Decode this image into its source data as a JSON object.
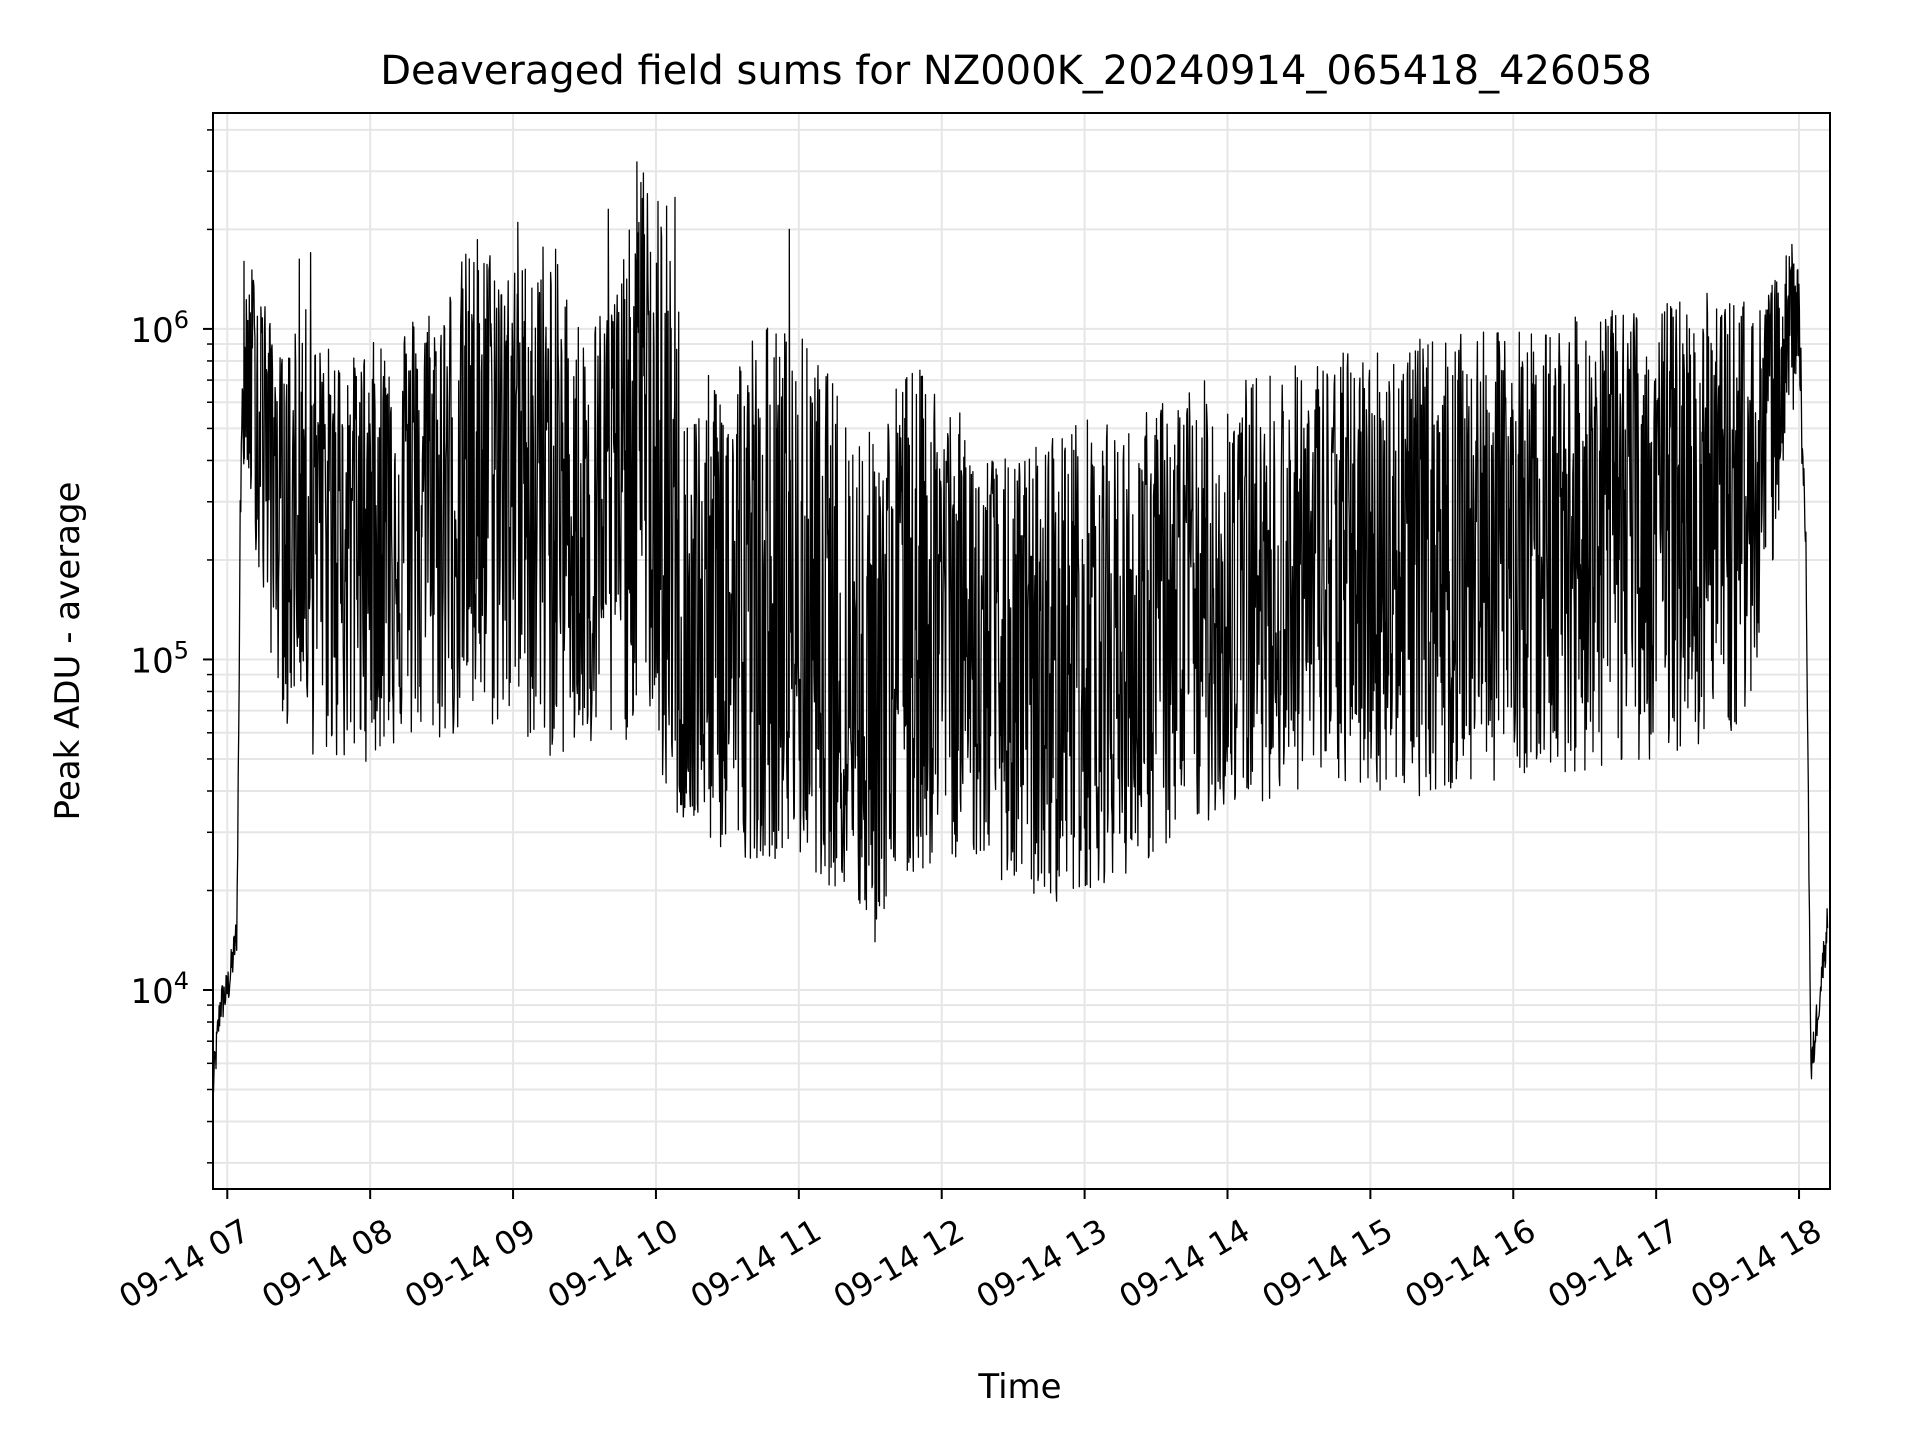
{
  "chart_data": {
    "type": "line",
    "title": "Deaveraged field sums for NZ000K_20240914_065418_426058",
    "xlabel": "Time",
    "ylabel": "Peak ADU - average",
    "yscale": "log",
    "ylim": [
      2500,
      4500000
    ],
    "xlim": [
      "2024-09-14T06:54",
      "2024-09-14T18:13"
    ],
    "grid": true,
    "line_color": "#000000",
    "grid_color": "#e6e6e6",
    "x_ticks": [
      {
        "value": "2024-09-14T07:00",
        "label": "09-14 07"
      },
      {
        "value": "2024-09-14T08:00",
        "label": "09-14 08"
      },
      {
        "value": "2024-09-14T09:00",
        "label": "09-14 09"
      },
      {
        "value": "2024-09-14T10:00",
        "label": "09-14 10"
      },
      {
        "value": "2024-09-14T11:00",
        "label": "09-14 11"
      },
      {
        "value": "2024-09-14T12:00",
        "label": "09-14 12"
      },
      {
        "value": "2024-09-14T13:00",
        "label": "09-14 13"
      },
      {
        "value": "2024-09-14T14:00",
        "label": "09-14 14"
      },
      {
        "value": "2024-09-14T15:00",
        "label": "09-14 15"
      },
      {
        "value": "2024-09-14T16:00",
        "label": "09-14 16"
      },
      {
        "value": "2024-09-14T17:00",
        "label": "09-14 17"
      },
      {
        "value": "2024-09-14T18:00",
        "label": "09-14 18"
      }
    ],
    "y_ticks": [
      {
        "value": 10000,
        "base": "10",
        "exp": "4"
      },
      {
        "value": 100000,
        "base": "10",
        "exp": "5"
      },
      {
        "value": 1000000,
        "base": "10",
        "exp": "6"
      }
    ],
    "series": [
      {
        "x": [
          "2024-09-14T06:54",
          "2024-09-14T06:57",
          "2024-09-14T07:00",
          "2024-09-14T07:02",
          "2024-09-14T07:04",
          "2024-09-14T07:06",
          "2024-09-14T07:10",
          "2024-09-14T07:15",
          "2024-09-14T07:20",
          "2024-09-14T07:25",
          "2024-09-14T07:30",
          "2024-09-14T07:35",
          "2024-09-14T07:40",
          "2024-09-14T07:45",
          "2024-09-14T07:50",
          "2024-09-14T08:00",
          "2024-09-14T08:15",
          "2024-09-14T08:30",
          "2024-09-14T08:45",
          "2024-09-14T09:00",
          "2024-09-14T09:15",
          "2024-09-14T09:30",
          "2024-09-14T09:45",
          "2024-09-14T09:55",
          "2024-09-14T10:05",
          "2024-09-14T10:15",
          "2024-09-14T10:30",
          "2024-09-14T10:45",
          "2024-09-14T11:00",
          "2024-09-14T11:15",
          "2024-09-14T11:30",
          "2024-09-14T11:45",
          "2024-09-14T12:00",
          "2024-09-14T12:15",
          "2024-09-14T12:30",
          "2024-09-14T12:45",
          "2024-09-14T13:00",
          "2024-09-14T13:15",
          "2024-09-14T13:30",
          "2024-09-14T13:45",
          "2024-09-14T14:00",
          "2024-09-14T14:30",
          "2024-09-14T15:00",
          "2024-09-14T15:30",
          "2024-09-14T16:00",
          "2024-09-14T16:30",
          "2024-09-14T17:00",
          "2024-09-14T17:20",
          "2024-09-14T17:35",
          "2024-09-14T17:45",
          "2024-09-14T17:55",
          "2024-09-14T18:00",
          "2024-09-14T18:03",
          "2024-09-14T18:05",
          "2024-09-14T18:08",
          "2024-09-14T18:12"
        ],
        "y": [
          5000,
          9000,
          10000,
          12000,
          15000,
          500000,
          650000,
          800000,
          450000,
          250000,
          180000,
          600000,
          300000,
          250000,
          350000,
          300000,
          350000,
          300000,
          400000,
          600000,
          300000,
          250000,
          400000,
          700000,
          100000,
          90000,
          120000,
          90000,
          110000,
          90000,
          70000,
          120000,
          170000,
          100000,
          70000,
          80000,
          130000,
          90000,
          110000,
          120000,
          150000,
          170000,
          200000,
          220000,
          250000,
          270000,
          300000,
          320000,
          330000,
          400000,
          1200000,
          1000000,
          200000,
          5500,
          9000,
          16000
        ],
        "upper": [
          5000,
          9000,
          10000,
          12000,
          15000,
          1000000,
          1600000,
          1300000,
          900000,
          800000,
          1700000,
          900000,
          900000,
          900000,
          800000,
          900000,
          1100000,
          1300000,
          2000000,
          1500000,
          2000000,
          1000000,
          1500000,
          3200000,
          2400000,
          600000,
          900000,
          1100000,
          1000000,
          700000,
          500000,
          800000,
          700000,
          450000,
          400000,
          500000,
          550000,
          500000,
          600000,
          700000,
          700000,
          800000,
          900000,
          950000,
          1000000,
          1100000,
          1200000,
          1300000,
          1250000,
          1200000,
          1700000,
          1500000,
          200000,
          5500,
          9000,
          16000
        ],
        "lower": [
          5000,
          9000,
          10000,
          12000,
          15000,
          400000,
          300000,
          130000,
          90000,
          60000,
          90000,
          50000,
          50000,
          50000,
          45000,
          50000,
          55000,
          55000,
          60000,
          60000,
          50000,
          50000,
          50000,
          80000,
          35000,
          30000,
          25000,
          25000,
          25000,
          20000,
          15000,
          20000,
          25000,
          25000,
          20000,
          18000,
          20000,
          22000,
          25000,
          30000,
          35000,
          40000,
          40000,
          38000,
          45000,
          45000,
          50000,
          55000,
          60000,
          100000,
          500000,
          600000,
          200000,
          5500,
          9000,
          16000
        ],
        "peaks": [
          {
            "x": "2024-09-14T07:07",
            "y": 1600000
          },
          {
            "x": "2024-09-14T07:35",
            "y": 1700000
          },
          {
            "x": "2024-09-14T09:02",
            "y": 2100000
          },
          {
            "x": "2024-09-14T09:40",
            "y": 2300000
          },
          {
            "x": "2024-09-14T09:52",
            "y": 3200000
          },
          {
            "x": "2024-09-14T10:08",
            "y": 2500000
          },
          {
            "x": "2024-09-14T10:56",
            "y": 2000000
          },
          {
            "x": "2024-09-14T11:32",
            "y": 14000
          },
          {
            "x": "2024-09-14T17:57",
            "y": 1800000
          }
        ]
      }
    ]
  }
}
